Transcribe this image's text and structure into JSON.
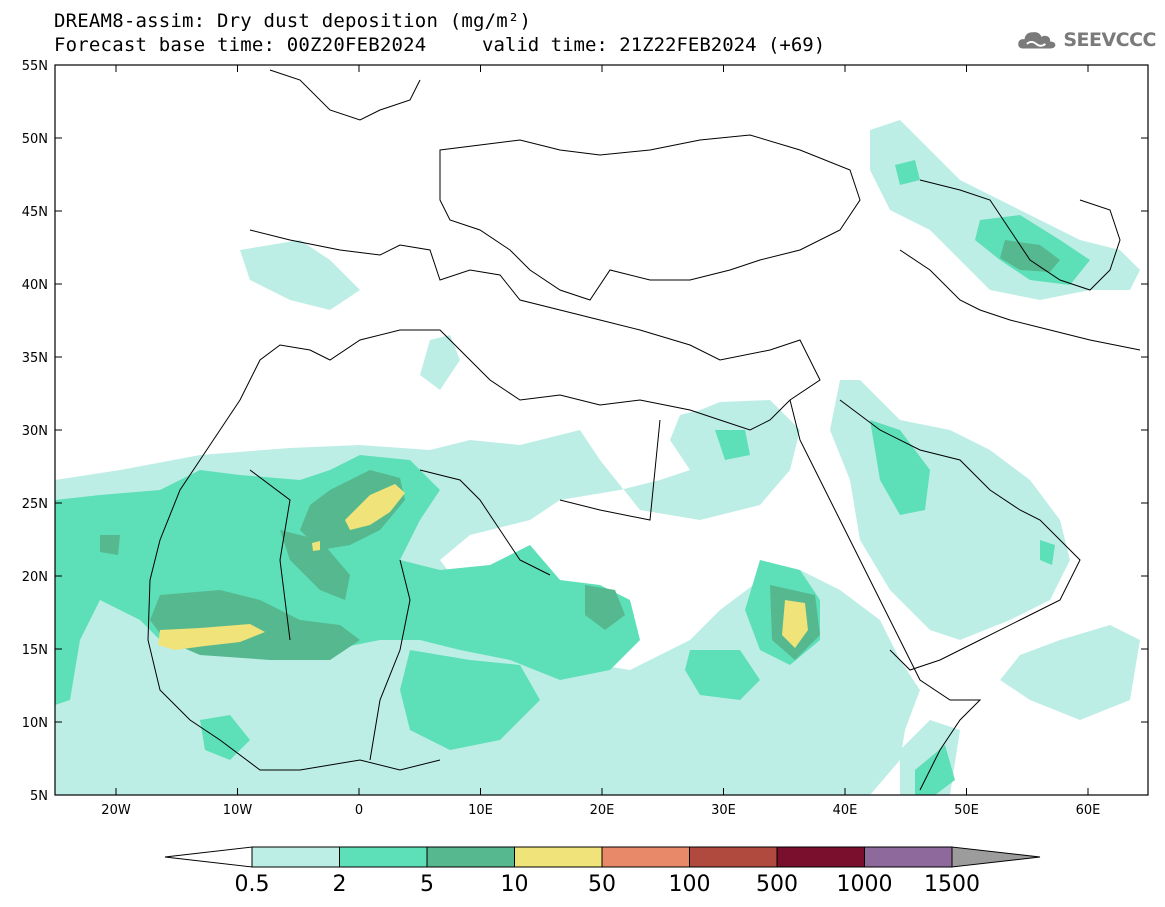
{
  "header": {
    "title": "DREAM8-assim: Dry dust deposition (mg/m²)",
    "base_time": "Forecast base time: 00Z20FEB2024",
    "valid_time": "valid time: 21Z22FEB2024 (+69)"
  },
  "logo": {
    "text": "SEEVCCC",
    "icon": "cloud-logo-icon"
  },
  "map": {
    "lat_labels": [
      "55N",
      "50N",
      "45N",
      "40N",
      "35N",
      "30N",
      "25N",
      "20N",
      "15N",
      "10N",
      "5N"
    ],
    "lon_labels": [
      "20W",
      "10W",
      "0",
      "10E",
      "20E",
      "30E",
      "40E",
      "50E",
      "60E"
    ]
  },
  "colorbar": {
    "labels": [
      "0.5",
      "2",
      "5",
      "10",
      "50",
      "100",
      "500",
      "1000",
      "1500"
    ],
    "colors": [
      "#bdeee6",
      "#5ddfb8",
      "#56b88f",
      "#efe37a",
      "#e8896a",
      "#b04a3f",
      "#7a0f2d",
      "#8e6a9c",
      "#9c9c9c"
    ]
  }
}
